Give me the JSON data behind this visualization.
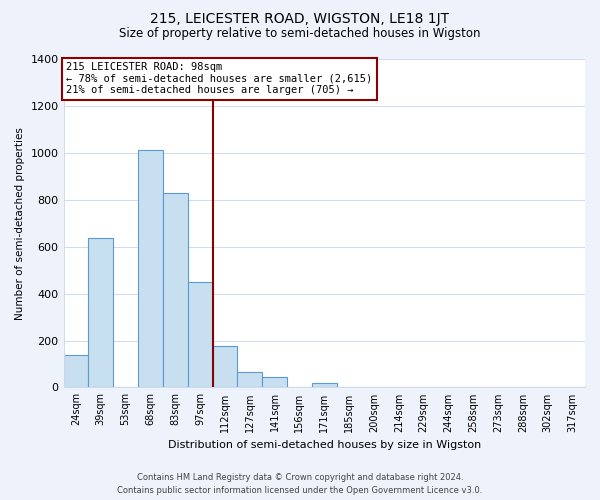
{
  "title": "215, LEICESTER ROAD, WIGSTON, LE18 1JT",
  "subtitle": "Size of property relative to semi-detached houses in Wigston",
  "xlabel": "Distribution of semi-detached houses by size in Wigston",
  "ylabel": "Number of semi-detached properties",
  "bar_labels": [
    "24sqm",
    "39sqm",
    "53sqm",
    "68sqm",
    "83sqm",
    "97sqm",
    "112sqm",
    "127sqm",
    "141sqm",
    "156sqm",
    "171sqm",
    "185sqm",
    "200sqm",
    "214sqm",
    "229sqm",
    "244sqm",
    "258sqm",
    "273sqm",
    "288sqm",
    "302sqm",
    "317sqm"
  ],
  "bar_values": [
    140,
    635,
    0,
    1010,
    830,
    450,
    175,
    65,
    45,
    0,
    20,
    0,
    0,
    0,
    0,
    0,
    0,
    0,
    0,
    0,
    0
  ],
  "bar_color": "#c8dff0",
  "bar_edge_color": "#5b9bd5",
  "highlight_line_color": "#8b0000",
  "annotation_title": "215 LEICESTER ROAD: 98sqm",
  "annotation_line1": "← 78% of semi-detached houses are smaller (2,615)",
  "annotation_line2": "21% of semi-detached houses are larger (705) →",
  "annotation_box_color": "#ffffff",
  "annotation_box_edge": "#8b0000",
  "ylim": [
    0,
    1400
  ],
  "yticks": [
    0,
    200,
    400,
    600,
    800,
    1000,
    1200,
    1400
  ],
  "footer_line1": "Contains HM Land Registry data © Crown copyright and database right 2024.",
  "footer_line2": "Contains public sector information licensed under the Open Government Licence v3.0.",
  "bg_color": "#eef2fb",
  "plot_bg_color": "#ffffff",
  "grid_color": "#d0d9ee"
}
